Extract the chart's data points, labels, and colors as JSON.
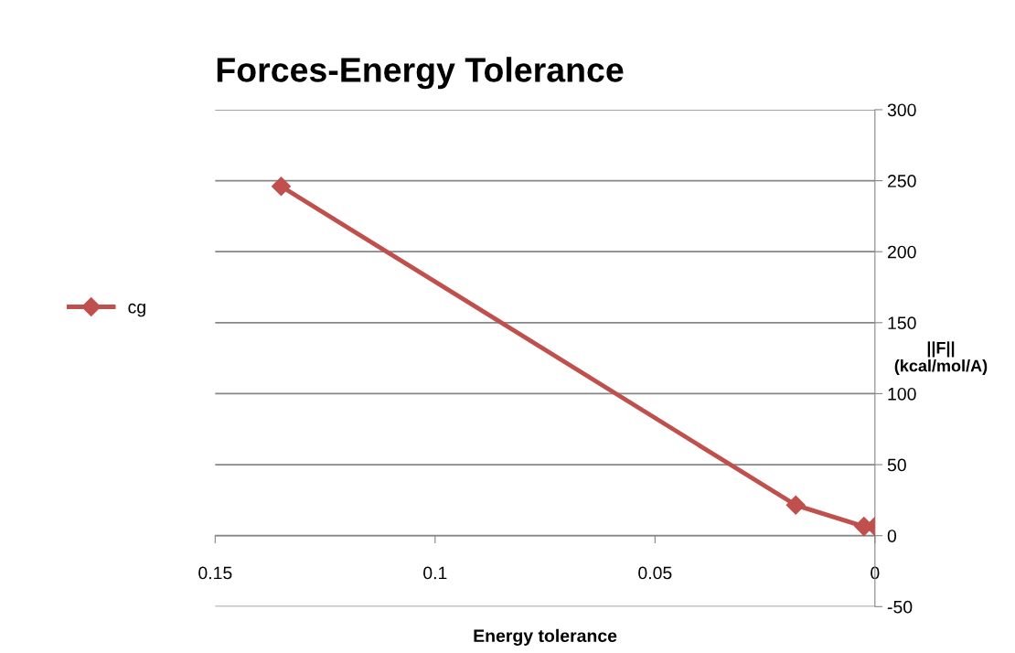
{
  "chart_data": {
    "type": "line",
    "title": "Forces-Energy Tolerance",
    "xlabel": "Energy tolerance",
    "ylabel": "||F||\n(kcal/mol/A)",
    "x": [
      0.135,
      0.018,
      0.0025,
      0
    ],
    "series": [
      {
        "name": "cg",
        "color": "#c0504d",
        "values": [
          246,
          21.5,
          6.5,
          6.5
        ]
      }
    ],
    "xlim": [
      0.15,
      0
    ],
    "xticks": [
      0.15,
      0.1,
      0.05,
      0
    ],
    "ylim": [
      -50,
      300
    ],
    "yticks": [
      -50,
      0,
      50,
      100,
      150,
      200,
      250,
      300
    ],
    "grid": "y",
    "legend": "left",
    "marker": "diamond",
    "line_style": "solid"
  }
}
